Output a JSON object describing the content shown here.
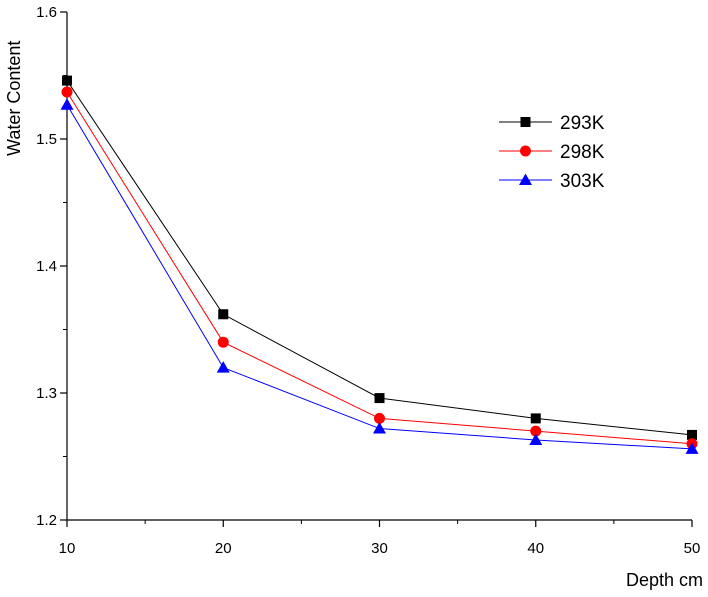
{
  "chart_data": {
    "type": "line",
    "title": "",
    "xlabel": "Depth cm",
    "ylabel": "Water Content",
    "x": [
      10,
      20,
      30,
      40,
      50
    ],
    "xlim": [
      10,
      50
    ],
    "ylim": [
      1.2,
      1.6
    ],
    "x_ticks": [
      "10",
      "20",
      "30",
      "40",
      "50"
    ],
    "y_ticks": [
      "1.2",
      "1.3",
      "1.4",
      "1.5",
      "1.6"
    ],
    "grid": false,
    "legend_position": "top-right",
    "series": [
      {
        "name": "293K",
        "marker": "square",
        "color": "#000000",
        "values": [
          1.546,
          1.362,
          1.296,
          1.28,
          1.267
        ]
      },
      {
        "name": "298K",
        "marker": "circle",
        "color": "#ff0000",
        "values": [
          1.537,
          1.34,
          1.28,
          1.27,
          1.26
        ]
      },
      {
        "name": "303K",
        "marker": "triangle",
        "color": "#0000ff",
        "values": [
          1.527,
          1.32,
          1.272,
          1.263,
          1.256
        ]
      }
    ]
  }
}
